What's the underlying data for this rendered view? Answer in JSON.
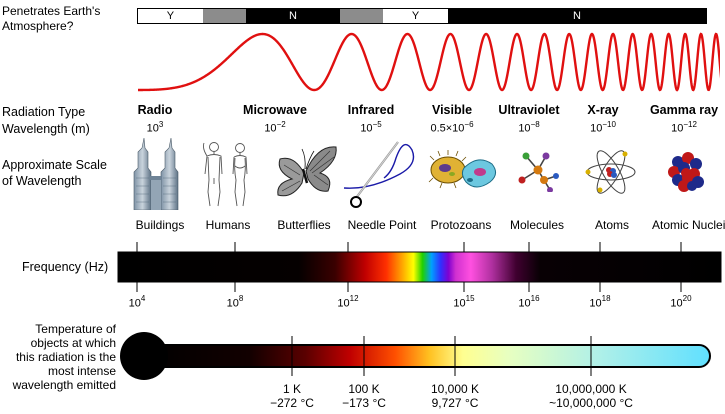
{
  "header": {
    "atmosphere_label": "Penetrates Earth's\nAtmosphere?",
    "atmosphere_bar": [
      {
        "state": "yes",
        "label": "Y",
        "width": 65
      },
      {
        "state": "partial",
        "label": "",
        "width": 43
      },
      {
        "state": "no",
        "label": "N",
        "width": 95
      },
      {
        "state": "partial",
        "label": "",
        "width": 43
      },
      {
        "state": "yes",
        "label": "Y",
        "width": 65
      },
      {
        "state": "no",
        "label": "N",
        "width": 259
      }
    ]
  },
  "rows": {
    "radiation_type_label": "Radiation Type",
    "wavelength_label": "Wavelength (m)",
    "scale_label": "Approximate Scale\nof Wavelength",
    "frequency_label": "Frequency (Hz)",
    "temperature_label": "Temperature of\nobjects at which\nthis radiation is the\nmost intense\nwavelength emitted"
  },
  "radiation": [
    {
      "name": "Radio",
      "base": "10",
      "exp": "3",
      "prefix": ""
    },
    {
      "name": "Microwave",
      "base": "10",
      "exp": "−2",
      "prefix": ""
    },
    {
      "name": "Infrared",
      "base": "10",
      "exp": "−5",
      "prefix": ""
    },
    {
      "name": "Visible",
      "base": "0.5×10",
      "exp": "−6",
      "prefix": ""
    },
    {
      "name": "Ultraviolet",
      "base": "10",
      "exp": "−8",
      "prefix": ""
    },
    {
      "name": "X-ray",
      "base": "10",
      "exp": "−10",
      "prefix": ""
    },
    {
      "name": "Gamma ray",
      "base": "10",
      "exp": "−12",
      "prefix": ""
    }
  ],
  "scale_objects": [
    {
      "label": "Buildings",
      "icon": "buildings-icon"
    },
    {
      "label": "Humans",
      "icon": "humans-icon"
    },
    {
      "label": "Butterflies",
      "icon": "butterfly-icon"
    },
    {
      "label": "Needle Point",
      "icon": "needle-icon"
    },
    {
      "label": "Protozoans",
      "icon": "protozoan-icon"
    },
    {
      "label": "Molecules",
      "icon": "molecule-icon"
    },
    {
      "label": "Atoms",
      "icon": "atom-icon"
    },
    {
      "label": "Atomic Nuclei",
      "icon": "nucleus-icon"
    }
  ],
  "frequency_ticks": [
    {
      "base": "10",
      "exp": "4"
    },
    {
      "base": "10",
      "exp": "8"
    },
    {
      "base": "10",
      "exp": "12"
    },
    {
      "base": "10",
      "exp": "15"
    },
    {
      "base": "10",
      "exp": "16"
    },
    {
      "base": "10",
      "exp": "18"
    },
    {
      "base": "10",
      "exp": "20"
    }
  ],
  "temperature_ticks": [
    {
      "kelvin": "1 K",
      "celsius": "−272 °C"
    },
    {
      "kelvin": "100 K",
      "celsius": "−173 °C"
    },
    {
      "kelvin": "10,000 K",
      "celsius": "9,727 °C"
    },
    {
      "kelvin": "10,000,000 K",
      "celsius": "~10,000,000 °C"
    }
  ],
  "colors": {
    "wave": "#e01010",
    "thermometer_outline": "#000000",
    "thermometer_bulb": "#000000"
  }
}
